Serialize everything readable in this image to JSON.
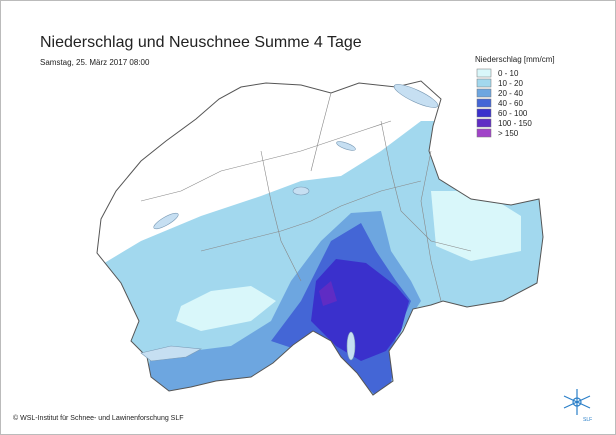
{
  "header": {
    "title": "Niederschlag und Neuschnee Summe 4 Tage",
    "subtitle": "Samstag, 25. März 2017 08:00"
  },
  "legend": {
    "title": "Niederschlag [mm/cm]",
    "items": [
      {
        "label": "0 - 10",
        "color": "#d9f7fa"
      },
      {
        "label": "10 - 20",
        "color": "#a2d8ee"
      },
      {
        "label": "20 - 40",
        "color": "#6da6e0"
      },
      {
        "label": "40 - 60",
        "color": "#4466d6"
      },
      {
        "label": "60 - 100",
        "color": "#3a30cc"
      },
      {
        "label": "100 - 150",
        "color": "#5f2cc4"
      },
      {
        "label": "> 150",
        "color": "#a043c8"
      }
    ]
  },
  "footer": {
    "copyright": "© WSL-Institut für Schnee- und Lawinenforschung SLF",
    "logo": "SLF"
  }
}
